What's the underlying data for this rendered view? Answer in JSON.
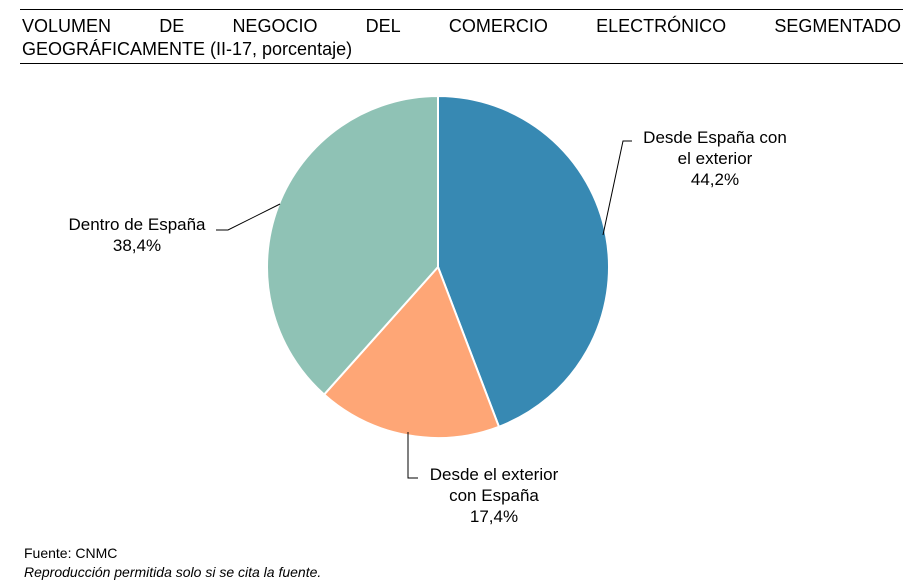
{
  "header": {
    "title_words": [
      "VOLUMEN",
      "DE",
      "NEGOCIO",
      "DEL",
      "COMERCIO",
      "ELECTRÓNICO",
      "SEGMENTADO"
    ],
    "title_line2": "GEOGRÁFICAMENTE (II-17, porcentaje)"
  },
  "chart_data": {
    "type": "pie",
    "title": "VOLUMEN DE NEGOCIO DEL COMERCIO ELECTRÓNICO SEGMENTADO GEOGRÁFICAMENTE (II-17, porcentaje)",
    "slices": [
      {
        "label_lines": [
          "Desde España con",
          "el exterior"
        ],
        "value": 44.2,
        "value_text": "44,2%",
        "color": "#3789b3"
      },
      {
        "label_lines": [
          "Desde el exterior",
          "con España"
        ],
        "value": 17.4,
        "value_text": "17,4%",
        "color": "#fea676"
      },
      {
        "label_lines": [
          "Dentro de España"
        ],
        "value": 38.4,
        "value_text": "38,4%",
        "color": "#8fc2b5"
      }
    ],
    "legend": "none",
    "start": "top",
    "direction": "clockwise"
  },
  "footer": {
    "source": "Fuente: CNMC",
    "reproduction": "Reproducción permitida solo si se cita la fuente."
  }
}
